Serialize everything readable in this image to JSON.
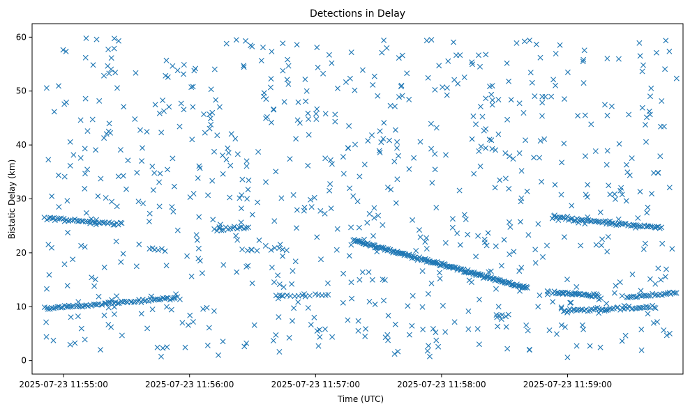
{
  "chart_data": {
    "type": "scatter",
    "title": "Detections in Delay",
    "xlabel": "Time (UTC)",
    "ylabel": "Bistatic Delay (km)",
    "x_ticks": [
      "2025-07-23 11:55:00",
      "2025-07-23 11:56:00",
      "2025-07-23 11:57:00",
      "2025-07-23 11:58:00",
      "2025-07-23 11:59:00"
    ],
    "xlim": [
      "2025-07-23 11:54:45",
      "2025-07-23 11:59:55"
    ],
    "y_ticks": [
      0,
      10,
      20,
      30,
      40,
      50,
      60
    ],
    "ylim": [
      -2.5,
      62.5
    ],
    "marker": "x",
    "grid": false,
    "color": "#1f77b4",
    "tracks": [
      {
        "x": [
          "2025-07-23 11:54:51",
          "2025-07-23 11:55:27"
        ],
        "y": [
          26.4,
          25.4
        ],
        "n": 42
      },
      {
        "x": [
          "2025-07-23 11:54:51",
          "2025-07-23 11:55:55"
        ],
        "y": [
          9.6,
          11.7
        ],
        "n": 75
      },
      {
        "x": [
          "2025-07-23 11:56:12",
          "2025-07-23 11:56:28"
        ],
        "y": [
          24.3,
          24.8
        ],
        "n": 16
      },
      {
        "x": [
          "2025-07-23 11:57:18",
          "2025-07-23 11:58:41"
        ],
        "y": [
          22.3,
          13.4
        ],
        "n": 170
      },
      {
        "x": [
          "2025-07-23 11:58:53",
          "2025-07-23 11:59:45"
        ],
        "y": [
          26.7,
          24.6
        ],
        "n": 68
      },
      {
        "x": [
          "2025-07-23 11:58:53",
          "2025-07-23 11:59:15"
        ],
        "y": [
          12.7,
          12.0
        ],
        "n": 34
      },
      {
        "x": [
          "2025-07-23 11:58:58",
          "2025-07-23 11:59:42"
        ],
        "y": [
          9.2,
          10.0
        ],
        "n": 50
      },
      {
        "x": [
          "2025-07-23 11:59:28",
          "2025-07-23 11:59:52"
        ],
        "y": [
          11.7,
          12.6
        ],
        "n": 28
      },
      {
        "x": [
          "2025-07-23 11:55:41",
          "2025-07-23 11:55:48"
        ],
        "y": [
          20.6,
          20.6
        ],
        "n": 6
      },
      {
        "x": [
          "2025-07-23 11:56:39",
          "2025-07-23 11:56:46"
        ],
        "y": [
          20.6,
          20.6
        ],
        "n": 5
      },
      {
        "x": [
          "2025-07-23 11:56:41",
          "2025-07-23 11:56:48"
        ],
        "y": [
          12.1,
          12.1
        ],
        "n": 5
      },
      {
        "x": [
          "2025-07-23 11:56:50",
          "2025-07-23 11:56:57"
        ],
        "y": [
          12.1,
          12.1
        ],
        "n": 5
      },
      {
        "x": [
          "2025-07-23 11:57:00",
          "2025-07-23 11:57:06"
        ],
        "y": [
          12.1,
          12.1
        ],
        "n": 5
      },
      {
        "x": [
          "2025-07-23 11:58:26",
          "2025-07-23 11:58:32"
        ],
        "y": [
          8.3,
          8.3
        ],
        "n": 5
      }
    ],
    "clutter": {
      "count": 760,
      "x_range": [
        "2025-07-23 11:54:51",
        "2025-07-23 11:59:52"
      ],
      "y_range": [
        0.5,
        60
      ]
    }
  }
}
